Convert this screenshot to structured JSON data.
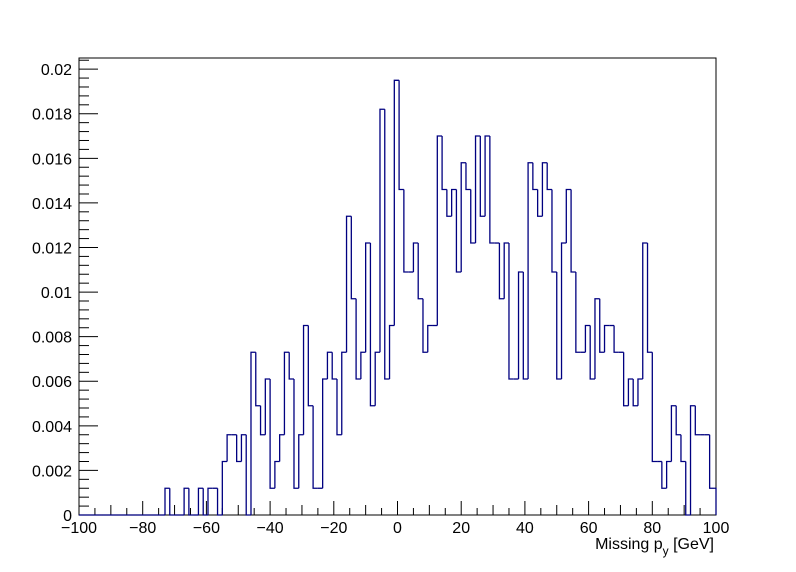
{
  "chart_data": {
    "type": "histogram",
    "title": "",
    "xlabel": "Missing p",
    "xlabel_subscript": "y",
    "xlabel_unit": " [GeV]",
    "ylabel": "",
    "xlim": [
      -100,
      100
    ],
    "ylim": [
      0,
      0.0205
    ],
    "bin_width": 1.5,
    "bin_start": -100,
    "grid": false,
    "legend": "none",
    "line_color": "#000080",
    "x_ticks": [
      -100,
      -80,
      -60,
      -40,
      -20,
      0,
      20,
      40,
      60,
      80,
      100
    ],
    "x_tick_labels": [
      "−100",
      "−80",
      "−60",
      "−40",
      "−20",
      "0",
      "20",
      "40",
      "60",
      "80",
      "100"
    ],
    "y_ticks": [
      0,
      0.002,
      0.004,
      0.006,
      0.008,
      0.01,
      0.012,
      0.014,
      0.016,
      0.018,
      0.02
    ],
    "y_tick_labels": [
      "0",
      "0.002",
      "0.004",
      "0.006",
      "0.008",
      "0.01",
      "0.012",
      "0.014",
      "0.016",
      "0.018",
      "0.02"
    ],
    "values": [
      0,
      0,
      0,
      0,
      0,
      0,
      0,
      0,
      0,
      0,
      0,
      0,
      0,
      0,
      0,
      0,
      0,
      0,
      0.0012,
      0,
      0,
      0,
      0.0012,
      0,
      0,
      0.0012,
      0,
      0.0012,
      0.0012,
      0,
      0.0024,
      0.0036,
      0.0036,
      0.0024,
      0.0036,
      0,
      0.0073,
      0.0049,
      0.0036,
      0.0061,
      0.0012,
      0.0024,
      0.0036,
      0.0073,
      0.0061,
      0.0012,
      0.0036,
      0.0085,
      0.0049,
      0.0012,
      0.0012,
      0.0061,
      0.0073,
      0.0061,
      0.0036,
      0.0073,
      0.0134,
      0.0097,
      0.0061,
      0.0073,
      0.0122,
      0.0049,
      0.0073,
      0.0182,
      0.0061,
      0.0085,
      0.0195,
      0.0146,
      0.0109,
      0.0109,
      0.0122,
      0.0097,
      0.0073,
      0.0085,
      0.0085,
      0.017,
      0.0146,
      0.0134,
      0.0146,
      0.0109,
      0.0158,
      0.0146,
      0.0122,
      0.017,
      0.0134,
      0.017,
      0.0122,
      0.0122,
      0.0097,
      0.0122,
      0.0061,
      0.0061,
      0.0109,
      0.0061,
      0.0158,
      0.0146,
      0.0134,
      0.0158,
      0.0146,
      0.0109,
      0.0061,
      0.0122,
      0.0146,
      0.0109,
      0.0073,
      0.0073,
      0.0085,
      0.0061,
      0.0097,
      0.0073,
      0.0085,
      0.0085,
      0.0073,
      0.0073,
      0.0049,
      0.0061,
      0.0049,
      0.0061,
      0.0122,
      0.0073,
      0.0024,
      0.0024,
      0.0012,
      0.0024,
      0.0049,
      0.0036,
      0.0024,
      0,
      0.0049,
      0.0036,
      0.0036,
      0.0036,
      0.0012,
      0.0012,
      0.0012,
      0,
      0,
      0,
      0.0012,
      0,
      0,
      0,
      0,
      0,
      0,
      0,
      0,
      0,
      0,
      0,
      0,
      0,
      0,
      0,
      0,
      0,
      0,
      0,
      0,
      0,
      0,
      0,
      0
    ]
  }
}
